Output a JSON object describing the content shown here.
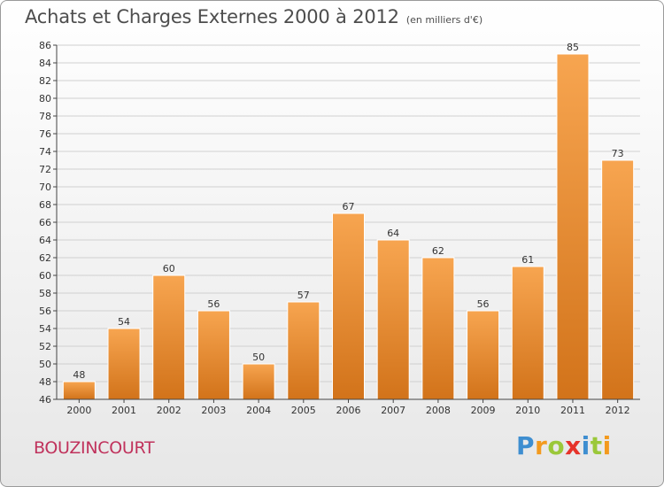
{
  "header": {
    "title": "Achats et Charges Externes 2000 à 2012",
    "unit": "(en milliers d'€)"
  },
  "footer": {
    "location": "BOUZINCOURT",
    "brand": "Proxiti"
  },
  "colors": {
    "bar_light": "#f7a550",
    "bar_dark": "#d2731a",
    "grid": "#d0d0d0",
    "axis": "#444444",
    "location_text": "#c0325c"
  },
  "chart_data": {
    "type": "bar",
    "title": "Achats et Charges Externes 2000 à 2012",
    "subtitle": "(en milliers d'€)",
    "categories": [
      "2000",
      "2001",
      "2002",
      "2003",
      "2004",
      "2005",
      "2006",
      "2007",
      "2008",
      "2009",
      "2010",
      "2011",
      "2012"
    ],
    "values": [
      48,
      54,
      60,
      56,
      50,
      57,
      67,
      64,
      62,
      56,
      61,
      85,
      73
    ],
    "ylim": [
      46,
      86
    ],
    "ytick_step": 2,
    "grid": true,
    "data_labels": true
  }
}
